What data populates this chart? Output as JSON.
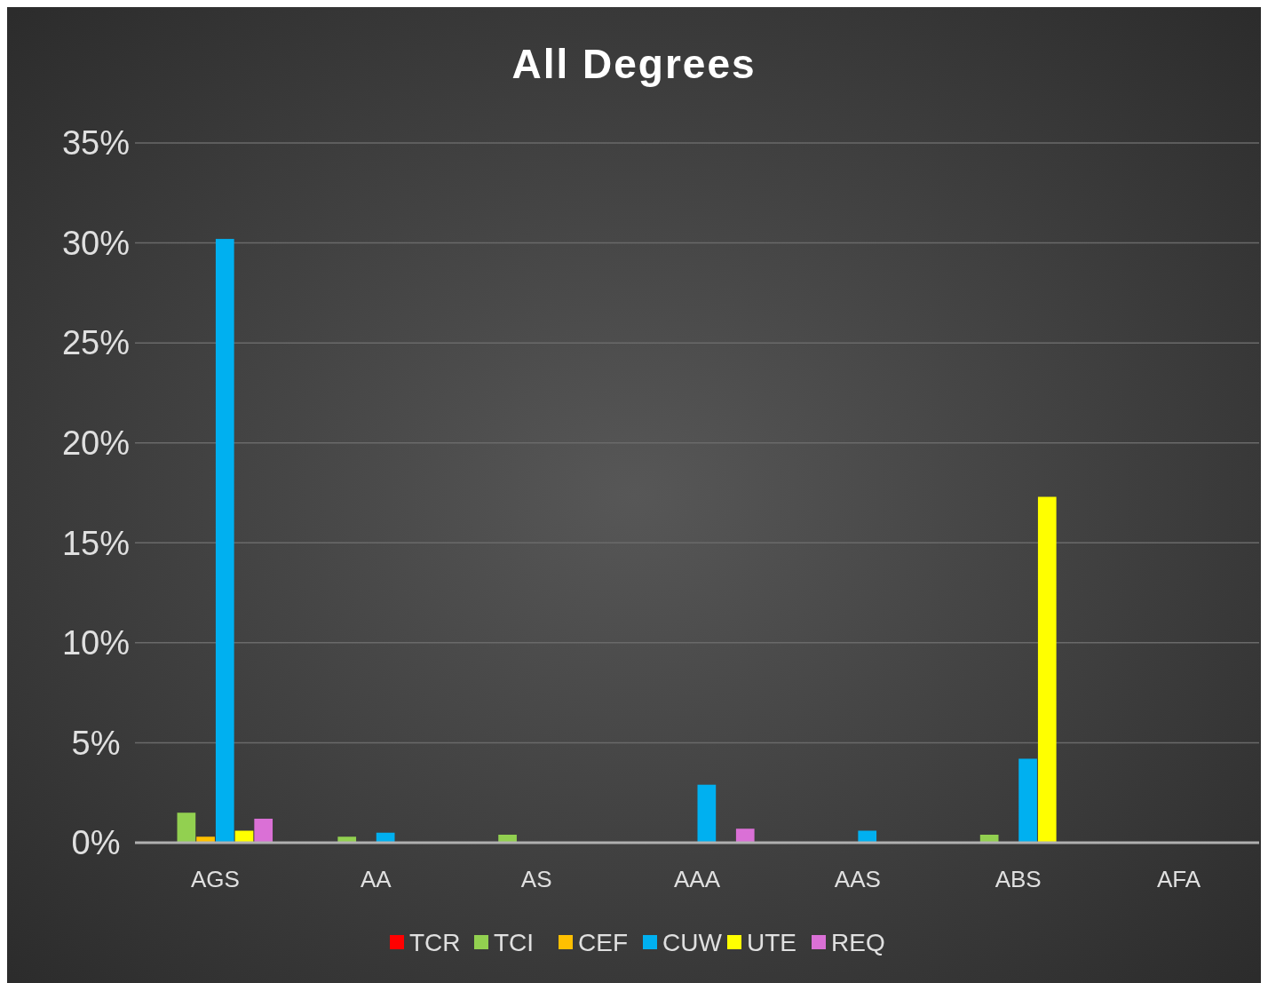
{
  "chart_data": {
    "type": "bar",
    "title": "All Degrees",
    "categories": [
      "AGS",
      "AA",
      "AS",
      "AAA",
      "AAS",
      "ABS",
      "AFA"
    ],
    "series": [
      {
        "name": "TCR",
        "color": "#ff0000",
        "values": [
          0,
          0,
          0,
          0,
          0,
          0,
          0
        ]
      },
      {
        "name": "TCI",
        "color": "#92d050",
        "values": [
          1.5,
          0.3,
          0.4,
          0,
          0,
          0.4,
          0
        ]
      },
      {
        "name": "CEF",
        "color": "#ffc000",
        "values": [
          0.3,
          0,
          0,
          0,
          0,
          0,
          0
        ]
      },
      {
        "name": "CUW",
        "color": "#00b0f0",
        "values": [
          30.2,
          0.5,
          0,
          2.9,
          0.6,
          4.2,
          0
        ]
      },
      {
        "name": "UTE",
        "color": "#ffff00",
        "values": [
          0.6,
          0,
          0,
          0,
          0,
          17.3,
          0
        ]
      },
      {
        "name": "REQ",
        "color": "#da70d6",
        "values": [
          1.2,
          0,
          0,
          0.7,
          0,
          0,
          0
        ]
      }
    ],
    "ylim": [
      0,
      35
    ],
    "yticks": [
      {
        "value": 0,
        "label": "0%"
      },
      {
        "value": 5,
        "label": "5%"
      },
      {
        "value": 10,
        "label": "10%"
      },
      {
        "value": 15,
        "label": "15%"
      },
      {
        "value": 20,
        "label": "20%"
      },
      {
        "value": 25,
        "label": "25%"
      },
      {
        "value": 30,
        "label": "30%"
      },
      {
        "value": 35,
        "label": "35%"
      }
    ],
    "grid": "y",
    "legend": "bottom"
  }
}
